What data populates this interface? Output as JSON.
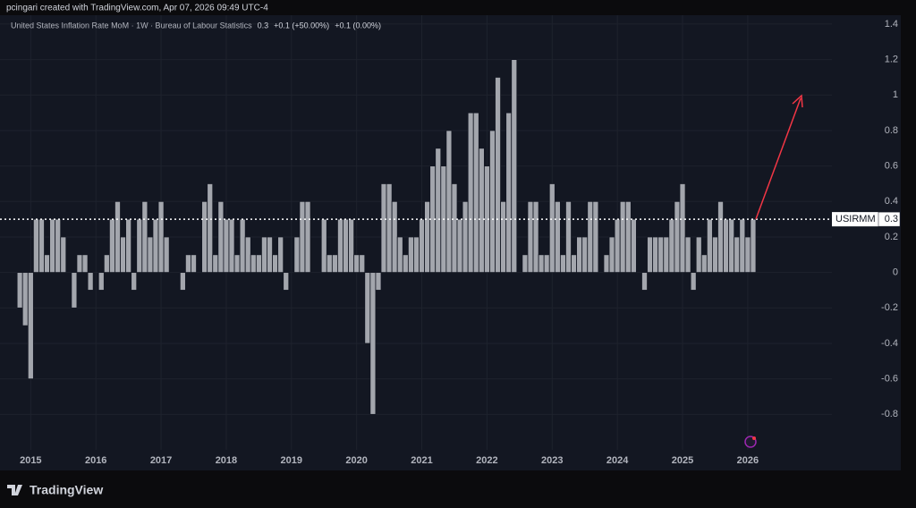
{
  "chart_data": {
    "type": "bar",
    "credit": "pcingari created with TradingView.com, Apr 07, 2026 09:49 UTC-4",
    "title": "United States Inflation Rate MoM · 1W · Bureau of Labour Statistics",
    "legend_values": [
      "0.3",
      "+0.1 (+50.00%)",
      "+0.1 (0.00%)"
    ],
    "series_label": "USIRMM",
    "brand": "TradingView",
    "color": "#a3a6ad",
    "grid": true,
    "ylim": [
      -1.0,
      1.45
    ],
    "yticks": [
      1.4,
      1.2,
      1,
      0.8,
      0.6,
      0.4,
      0.2,
      0,
      -0.2,
      -0.4,
      -0.6,
      -0.8
    ],
    "categories": [
      null,
      null,
      null,
      null,
      "2015",
      null,
      null,
      null,
      null,
      null,
      null,
      null,
      null,
      null,
      null,
      null,
      "2016",
      null,
      null,
      null,
      null,
      null,
      null,
      null,
      null,
      null,
      null,
      null,
      "2017",
      null,
      null,
      null,
      null,
      null,
      null,
      null,
      null,
      null,
      null,
      null,
      "2018",
      null,
      null,
      null,
      null,
      null,
      null,
      null,
      null,
      null,
      null,
      null,
      "2019",
      null,
      null,
      null,
      null,
      null,
      null,
      null,
      null,
      null,
      null,
      null,
      "2020",
      null,
      null,
      null,
      null,
      null,
      null,
      null,
      null,
      null,
      null,
      null,
      "2021",
      null,
      null,
      null,
      null,
      null,
      null,
      null,
      null,
      null,
      null,
      null,
      "2022",
      null,
      null,
      null,
      null,
      null,
      null,
      null,
      null,
      null,
      null,
      null,
      "2023",
      null,
      null,
      null,
      null,
      null,
      null,
      null,
      null,
      null,
      null,
      null,
      "2024",
      null,
      null,
      null,
      null,
      null,
      null,
      null,
      null,
      null,
      null,
      null,
      "2025",
      null,
      null,
      null,
      null,
      null,
      null,
      null,
      null,
      null,
      null,
      null,
      "2026",
      null
    ],
    "values": [
      0,
      0,
      -0.2,
      -0.3,
      -0.6,
      0.3,
      0.3,
      0.1,
      0.3,
      0.3,
      0.2,
      0,
      -0.2,
      0.1,
      0.1,
      -0.1,
      0,
      -0.1,
      0.1,
      0.3,
      0.4,
      0.2,
      0.3,
      -0.1,
      0.3,
      0.4,
      0.2,
      0.3,
      0.4,
      0.2,
      0,
      0,
      -0.1,
      0.1,
      0.1,
      0,
      0.4,
      0.5,
      0.1,
      0.4,
      0.3,
      0.3,
      0.1,
      0.3,
      0.2,
      0.1,
      0.1,
      0.2,
      0.2,
      0.1,
      0.2,
      -0.1,
      0,
      0.2,
      0.4,
      0.4,
      0,
      0,
      0.3,
      0.1,
      0.1,
      0.3,
      0.3,
      0.3,
      0.1,
      0.1,
      -0.4,
      -0.8,
      -0.1,
      0.5,
      0.5,
      0.4,
      0.2,
      0.1,
      0.2,
      0.2,
      0.3,
      0.4,
      0.6,
      0.7,
      0.6,
      0.8,
      0.5,
      0.3,
      0.4,
      0.9,
      0.9,
      0.7,
      0.6,
      0.8,
      1.1,
      0.4,
      0.9,
      1.2,
      0,
      0.1,
      0.4,
      0.4,
      0.1,
      0.1,
      0.5,
      0.4,
      0.1,
      0.4,
      0.1,
      0.2,
      0.2,
      0.4,
      0.4,
      0,
      0.1,
      0.2,
      0.3,
      0.4,
      0.4,
      0.3,
      0,
      -0.1,
      0.2,
      0.2,
      0.2,
      0.2,
      0.3,
      0.4,
      0.5,
      0.2,
      -0.1,
      0.2,
      0.1,
      0.3,
      0.2,
      0.4,
      0.3,
      0.3,
      0.2,
      0.3,
      0.2,
      0.3
    ]
  }
}
